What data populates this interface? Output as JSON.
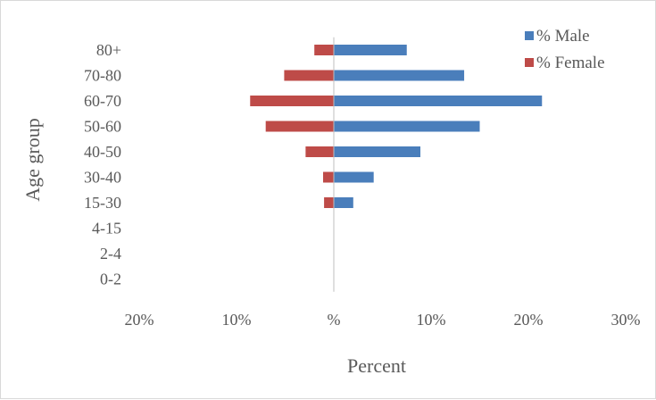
{
  "chart_data": {
    "type": "bar",
    "orientation": "horizontal",
    "categories": [
      "0-2",
      "2-4",
      "4-15",
      "15-30",
      "30-40",
      "40-50",
      "50-60",
      "60-70",
      "70-80",
      "80+"
    ],
    "series": [
      {
        "name": "% Male",
        "color": "#4a7ebb",
        "values": [
          0,
          0,
          0,
          2.0,
          4.1,
          8.9,
          15.0,
          21.4,
          13.4,
          7.5
        ]
      },
      {
        "name": "% Female",
        "color": "#be4b48",
        "values": [
          0,
          0,
          0,
          -1.0,
          -1.1,
          -2.9,
          -7.0,
          -8.6,
          -5.1,
          -2.0
        ]
      }
    ],
    "x_ticks": [
      {
        "value": -20,
        "label": "20%"
      },
      {
        "value": -10,
        "label": "10%"
      },
      {
        "value": 0,
        "label": "%"
      },
      {
        "value": 10,
        "label": "10%"
      },
      {
        "value": 20,
        "label": "20%"
      },
      {
        "value": 30,
        "label": "30%"
      }
    ],
    "xlim": [
      -20,
      30
    ],
    "xlabel": "Percent",
    "ylabel": "Age group",
    "grid": false,
    "legend_position": "top-right"
  }
}
